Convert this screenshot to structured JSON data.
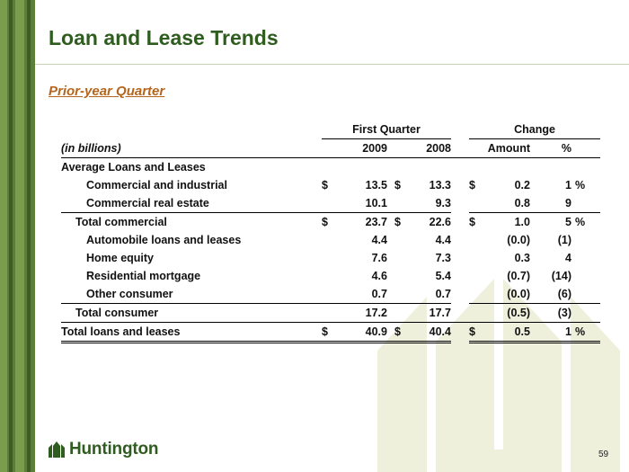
{
  "slide": {
    "title": "Loan and Lease Trends",
    "subtitle": "Prior-year Quarter",
    "page_number": "59",
    "logo_text": "Huntington"
  },
  "table": {
    "group_headers": {
      "first_quarter": "First Quarter",
      "change": "Change"
    },
    "column_headers": {
      "units": "(in billions)",
      "y2009": "2009",
      "y2008": "2008",
      "amount": "Amount",
      "pct": "%"
    },
    "section_title": "Average Loans and Leases",
    "rows": [
      {
        "label": "Commercial and industrial",
        "cur1": "$",
        "v2009": "13.5",
        "cur2": "$",
        "v2008": "13.3",
        "cur3": "$",
        "amount": "0.2",
        "pct": "1",
        "pct_sign": "%"
      },
      {
        "label": "Commercial real estate",
        "cur1": "",
        "v2009": "10.1",
        "cur2": "",
        "v2008": "9.3",
        "cur3": "",
        "amount": "0.8",
        "pct": "9",
        "pct_sign": ""
      },
      {
        "label": "Total commercial",
        "cur1": "$",
        "v2009": "23.7",
        "cur2": "$",
        "v2008": "22.6",
        "cur3": "$",
        "amount": "1.0",
        "pct": "5",
        "pct_sign": "%"
      },
      {
        "label": "Automobile loans and leases",
        "cur1": "",
        "v2009": "4.4",
        "cur2": "",
        "v2008": "4.4",
        "cur3": "",
        "amount": "(0.0)",
        "pct": "(1)",
        "pct_sign": ""
      },
      {
        "label": "Home equity",
        "cur1": "",
        "v2009": "7.6",
        "cur2": "",
        "v2008": "7.3",
        "cur3": "",
        "amount": "0.3",
        "pct": "4",
        "pct_sign": ""
      },
      {
        "label": "Residential mortgage",
        "cur1": "",
        "v2009": "4.6",
        "cur2": "",
        "v2008": "5.4",
        "cur3": "",
        "amount": "(0.7)",
        "pct": "(14)",
        "pct_sign": ""
      },
      {
        "label": "Other consumer",
        "cur1": "",
        "v2009": "0.7",
        "cur2": "",
        "v2008": "0.7",
        "cur3": "",
        "amount": "(0.0)",
        "pct": "(6)",
        "pct_sign": ""
      },
      {
        "label": "Total consumer",
        "cur1": "",
        "v2009": "17.2",
        "cur2": "",
        "v2008": "17.7",
        "cur3": "",
        "amount": "(0.5)",
        "pct": "(3)",
        "pct_sign": ""
      },
      {
        "label": "Total loans and leases",
        "cur1": "$",
        "v2009": "40.9",
        "cur2": "$",
        "v2008": "40.4",
        "cur3": "$",
        "amount": "0.5",
        "pct": "1",
        "pct_sign": "%"
      }
    ]
  },
  "colors": {
    "brand_green": "#2f5c1f",
    "accent_orange": "#b5651d",
    "sidebar_green": "#5b7f3a"
  }
}
